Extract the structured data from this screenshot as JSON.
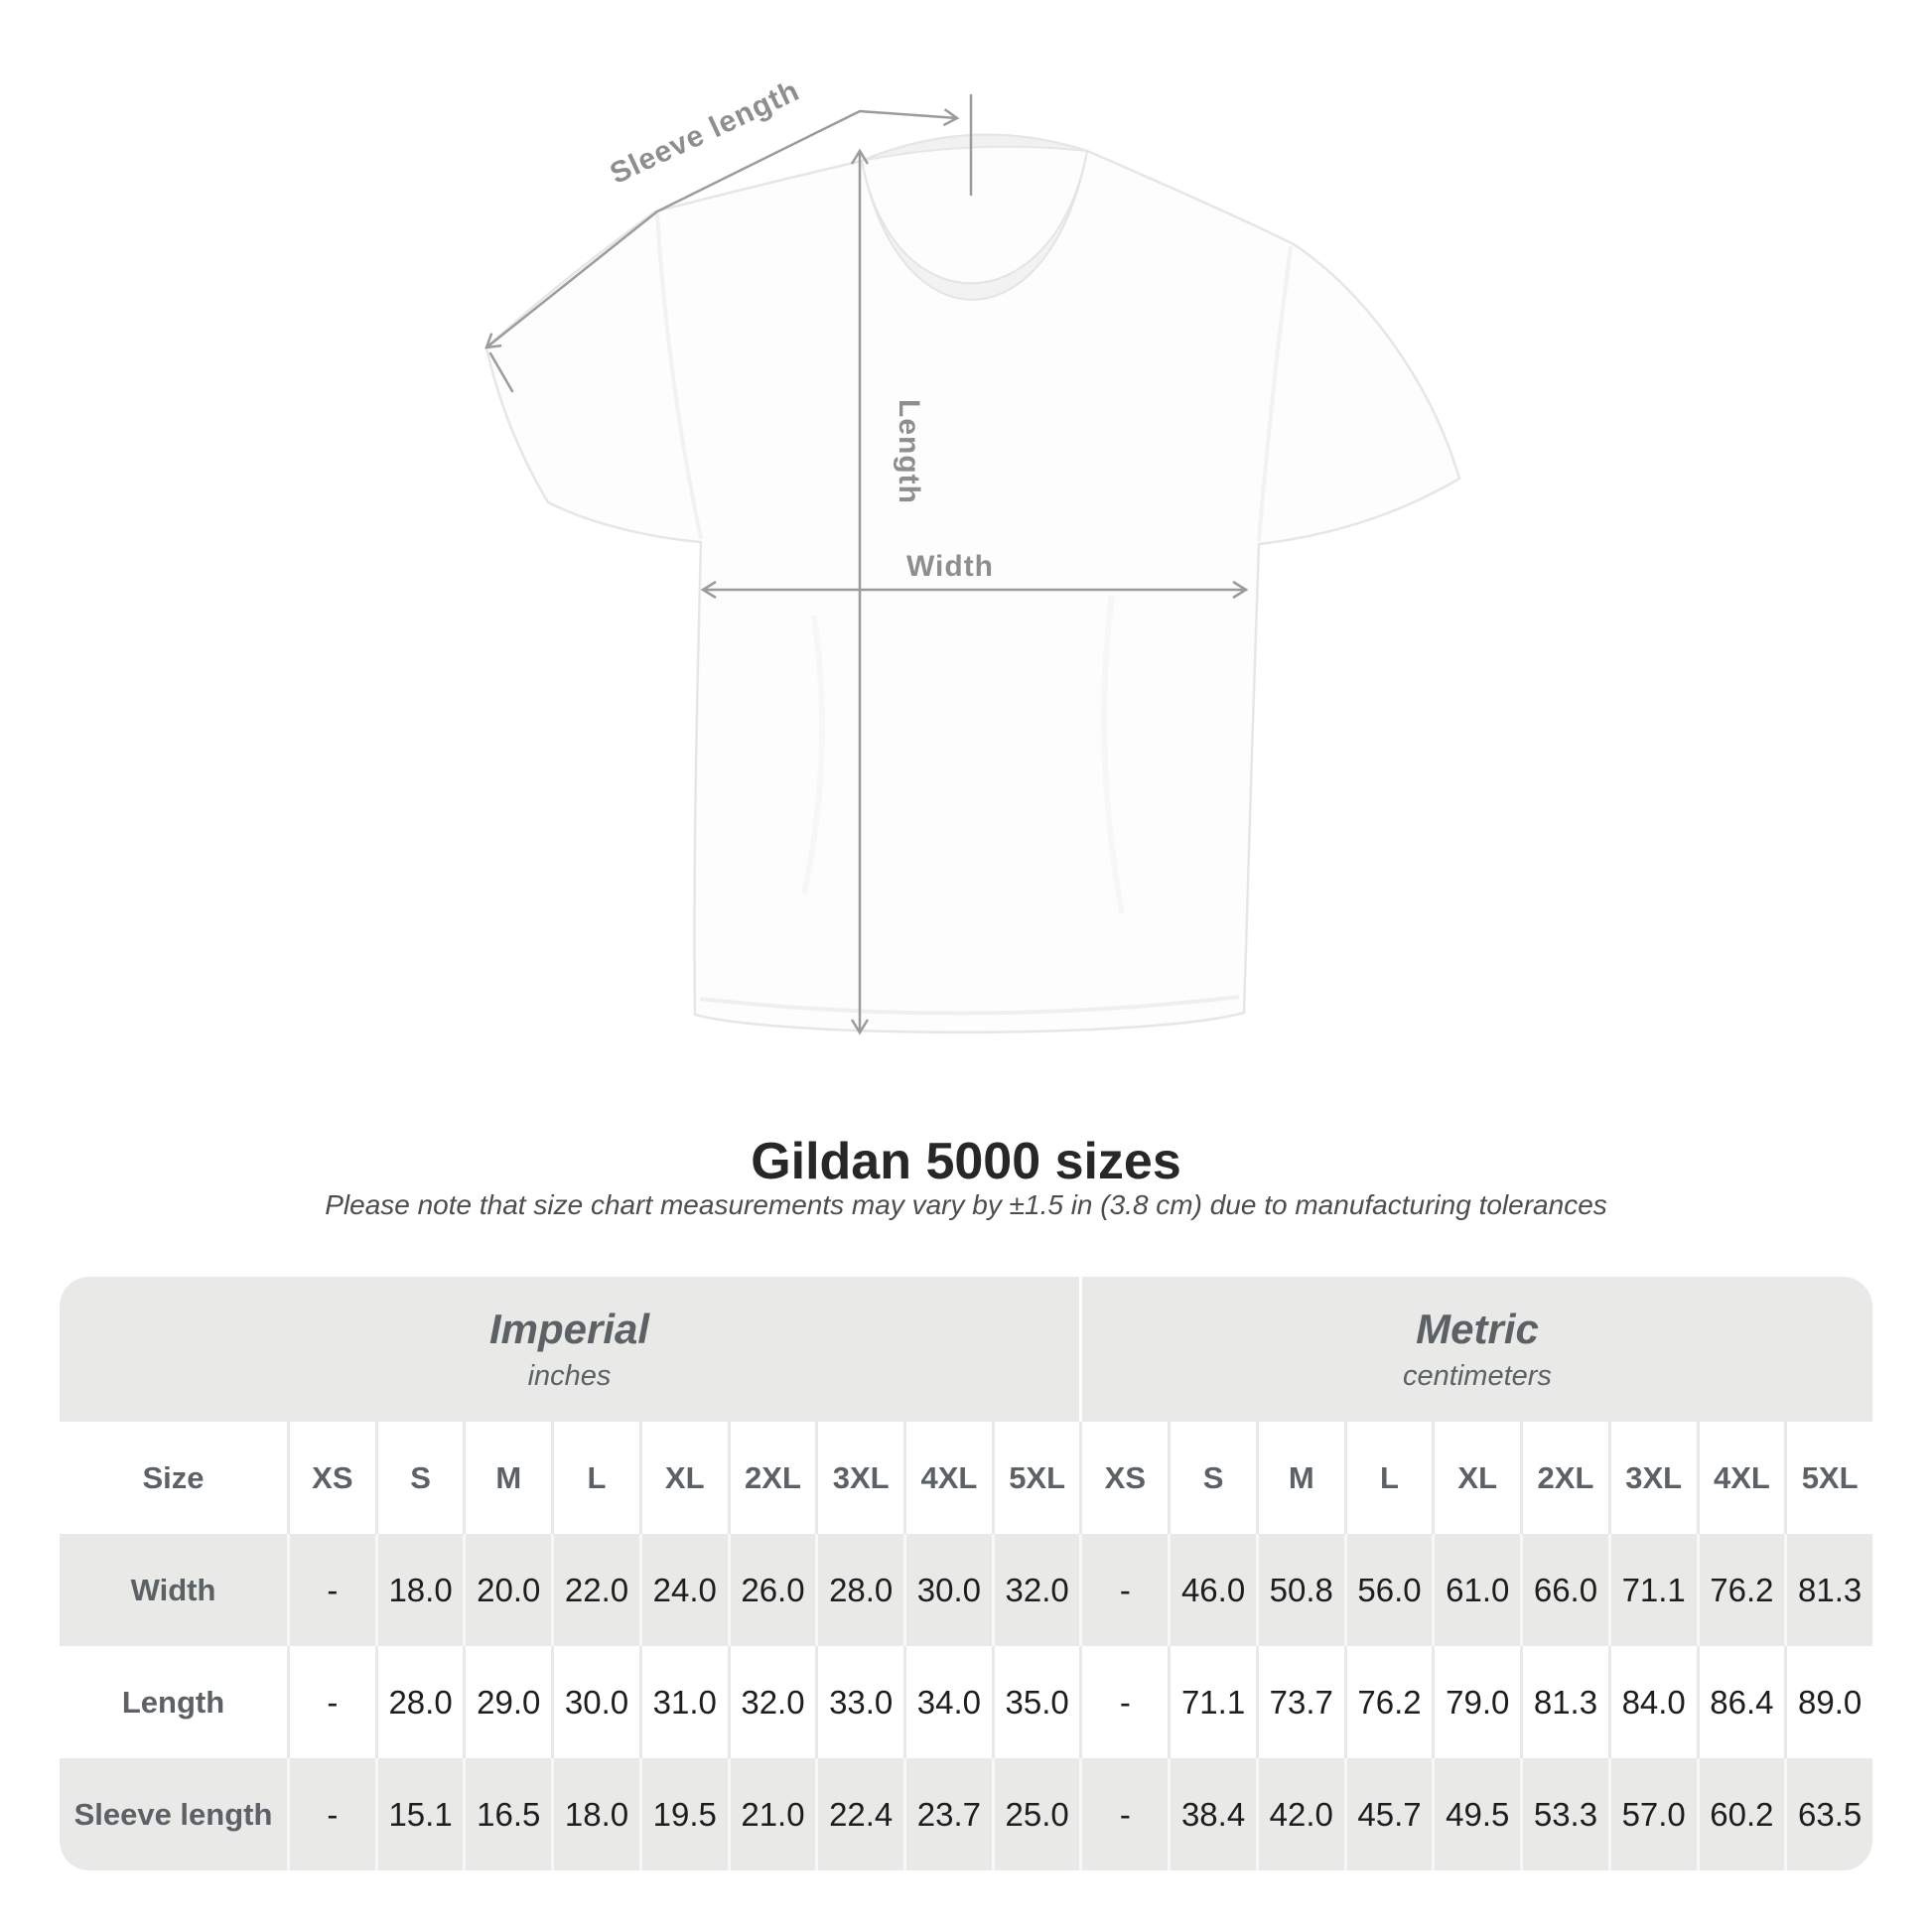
{
  "diagram": {
    "sleeve_length_label": "Sleeve length",
    "length_label": "Length",
    "width_label": "Width"
  },
  "chart_data": {
    "type": "table",
    "title": "Gildan 5000 sizes",
    "note": "Please note that size chart measurements may vary by ±1.5 in (3.8 cm) due to manufacturing tolerances",
    "size_column_header": "Size",
    "groups": [
      {
        "label": "Imperial",
        "unit": "inches"
      },
      {
        "label": "Metric",
        "unit": "centimeters"
      }
    ],
    "sizes": [
      "XS",
      "S",
      "M",
      "L",
      "XL",
      "2XL",
      "3XL",
      "4XL",
      "5XL"
    ],
    "rows": [
      {
        "label": "Width",
        "imperial": [
          "-",
          "18.0",
          "20.0",
          "22.0",
          "24.0",
          "26.0",
          "28.0",
          "30.0",
          "32.0"
        ],
        "metric": [
          "-",
          "46.0",
          "50.8",
          "56.0",
          "61.0",
          "66.0",
          "71.1",
          "76.2",
          "81.3"
        ]
      },
      {
        "label": "Length",
        "imperial": [
          "-",
          "28.0",
          "29.0",
          "30.0",
          "31.0",
          "32.0",
          "33.0",
          "34.0",
          "35.0"
        ],
        "metric": [
          "-",
          "71.1",
          "73.7",
          "76.2",
          "79.0",
          "81.3",
          "84.0",
          "86.4",
          "89.0"
        ]
      },
      {
        "label": "Sleeve length",
        "imperial": [
          "-",
          "15.1",
          "16.5",
          "18.0",
          "19.5",
          "21.0",
          "22.4",
          "23.7",
          "25.0"
        ],
        "metric": [
          "-",
          "38.4",
          "42.0",
          "45.7",
          "49.5",
          "53.3",
          "57.0",
          "60.2",
          "63.5"
        ]
      }
    ]
  },
  "colors": {
    "table_band_gray": "#e9e9e8",
    "table_label_gray": "#5b6165",
    "value_text": "#1d1d1d",
    "annotation_gray": "#9b9b9b",
    "title_text": "#272727"
  }
}
